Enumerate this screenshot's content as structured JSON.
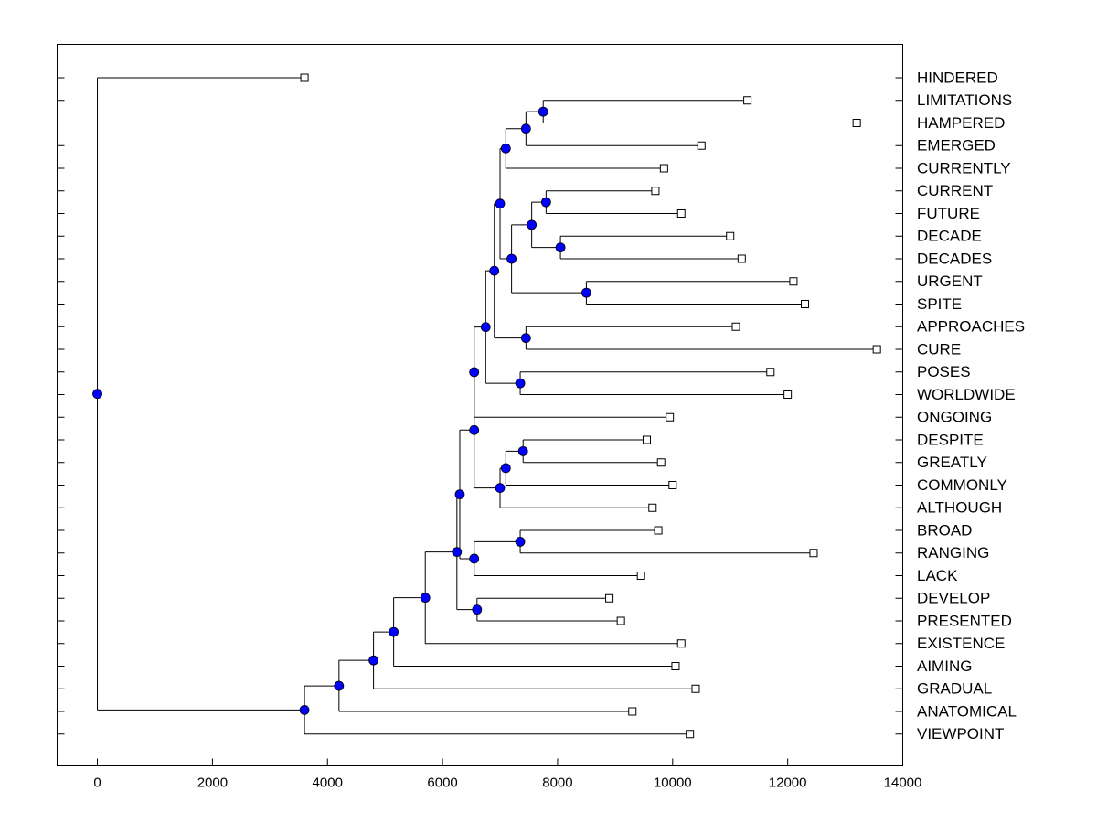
{
  "chart_data": {
    "type": "dendrogram",
    "title": "",
    "xlabel": "",
    "ylabel": "",
    "xlim": [
      -700,
      14000
    ],
    "x_ticks": [
      0,
      2000,
      4000,
      6000,
      8000,
      10000,
      12000,
      14000
    ],
    "x_tick_labels": [
      "0",
      "2000",
      "4000",
      "6000",
      "8000",
      "10000",
      "12000",
      "14000"
    ],
    "grid": false,
    "leaf_marker_color": "#ffffff",
    "node_marker_color": "#0000ff",
    "leaves": [
      {
        "name": "HINDERED",
        "value": 3600
      },
      {
        "name": "LIMITATIONS",
        "value": 11300
      },
      {
        "name": "HAMPERED",
        "value": 13200
      },
      {
        "name": "EMERGED",
        "value": 10500
      },
      {
        "name": "CURRENTLY",
        "value": 9850
      },
      {
        "name": "CURRENT",
        "value": 9700
      },
      {
        "name": "FUTURE",
        "value": 10150
      },
      {
        "name": "DECADE",
        "value": 11000
      },
      {
        "name": "DECADES",
        "value": 11200
      },
      {
        "name": "URGENT",
        "value": 12100
      },
      {
        "name": "SPITE",
        "value": 12300
      },
      {
        "name": "APPROACHES",
        "value": 11100
      },
      {
        "name": "CURE",
        "value": 13550
      },
      {
        "name": "POSES",
        "value": 11700
      },
      {
        "name": "WORLDWIDE",
        "value": 12000
      },
      {
        "name": "ONGOING",
        "value": 9950
      },
      {
        "name": "DESPITE",
        "value": 9550
      },
      {
        "name": "GREATLY",
        "value": 9800
      },
      {
        "name": "COMMONLY",
        "value": 10000
      },
      {
        "name": "ALTHOUGH",
        "value": 9650
      },
      {
        "name": "BROAD",
        "value": 9750
      },
      {
        "name": "RANGING",
        "value": 12450
      },
      {
        "name": "LACK",
        "value": 9450
      },
      {
        "name": "DEVELOP",
        "value": 8900
      },
      {
        "name": "PRESENTED",
        "value": 9100
      },
      {
        "name": "EXISTENCE",
        "value": 10150
      },
      {
        "name": "AIMING",
        "value": 10050
      },
      {
        "name": "GRADUAL",
        "value": 10400
      },
      {
        "name": "ANATOMICAL",
        "value": 9300
      },
      {
        "name": "VIEWPOINT",
        "value": 10300
      }
    ],
    "merges": [
      {
        "id": "m1",
        "value": 7750,
        "children": [
          "LIMITATIONS",
          "HAMPERED"
        ]
      },
      {
        "id": "m2",
        "value": 7450,
        "children": [
          "m1",
          "EMERGED"
        ]
      },
      {
        "id": "m3",
        "value": 7100,
        "children": [
          "m2",
          "CURRENTLY"
        ]
      },
      {
        "id": "m4",
        "value": 7800,
        "children": [
          "CURRENT",
          "FUTURE"
        ]
      },
      {
        "id": "m5",
        "value": 8050,
        "children": [
          "DECADE",
          "DECADES"
        ]
      },
      {
        "id": "m6",
        "value": 7550,
        "children": [
          "m4",
          "m5"
        ]
      },
      {
        "id": "m7",
        "value": 8500,
        "children": [
          "URGENT",
          "SPITE"
        ]
      },
      {
        "id": "m8",
        "value": 7200,
        "children": [
          "m6",
          "m7"
        ]
      },
      {
        "id": "m9",
        "value": 7000,
        "children": [
          "m3",
          "m8"
        ]
      },
      {
        "id": "m10",
        "value": 7450,
        "children": [
          "APPROACHES",
          "CURE"
        ]
      },
      {
        "id": "m11",
        "value": 6900,
        "children": [
          "m9",
          "m10"
        ]
      },
      {
        "id": "m12",
        "value": 7350,
        "children": [
          "POSES",
          "WORLDWIDE"
        ]
      },
      {
        "id": "m13",
        "value": 6750,
        "children": [
          "m11",
          "m12"
        ]
      },
      {
        "id": "m14",
        "value": 6550,
        "children": [
          "m13",
          "ONGOING"
        ]
      },
      {
        "id": "m15",
        "value": 7400,
        "children": [
          "DESPITE",
          "GREATLY"
        ]
      },
      {
        "id": "m16",
        "value": 7100,
        "children": [
          "m15",
          "COMMONLY"
        ]
      },
      {
        "id": "m17",
        "value": 7000,
        "children": [
          "m16",
          "ALTHOUGH"
        ]
      },
      {
        "id": "m18",
        "value": 6550,
        "children": [
          "m14",
          "m17"
        ]
      },
      {
        "id": "m19",
        "value": 7350,
        "children": [
          "BROAD",
          "RANGING"
        ]
      },
      {
        "id": "m20",
        "value": 6550,
        "children": [
          "m19",
          "LACK"
        ]
      },
      {
        "id": "m21",
        "value": 6300,
        "children": [
          "m18",
          "m20"
        ]
      },
      {
        "id": "m22",
        "value": 6600,
        "children": [
          "DEVELOP",
          "PRESENTED"
        ]
      },
      {
        "id": "m23",
        "value": 6250,
        "children": [
          "m21",
          "m22"
        ]
      },
      {
        "id": "m24",
        "value": 5700,
        "children": [
          "m23",
          "EXISTENCE"
        ]
      },
      {
        "id": "m25",
        "value": 5150,
        "children": [
          "m24",
          "AIMING"
        ]
      },
      {
        "id": "m26",
        "value": 4800,
        "children": [
          "m25",
          "GRADUAL"
        ]
      },
      {
        "id": "m27",
        "value": 4200,
        "children": [
          "m26",
          "ANATOMICAL"
        ]
      },
      {
        "id": "m28",
        "value": 3600,
        "children": [
          "m27",
          "VIEWPOINT"
        ]
      },
      {
        "id": "m29",
        "value": 0,
        "children": [
          "HINDERED",
          "m28"
        ]
      }
    ]
  }
}
